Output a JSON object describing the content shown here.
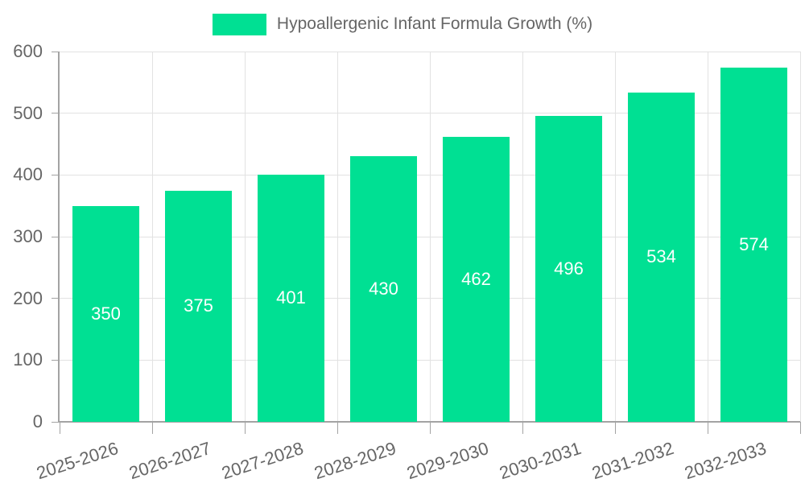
{
  "chart_data": {
    "type": "bar",
    "title": "",
    "legend": "Hypoallergenic Infant Formula Growth (%)",
    "legend_position": "top",
    "categories": [
      "2025-2026",
      "2026-2027",
      "2027-2028",
      "2028-2029",
      "2029-2030",
      "2030-2031",
      "2031-2032",
      "2032-2033"
    ],
    "values": [
      350,
      375,
      401,
      430,
      462,
      496,
      534,
      574
    ],
    "xlabel": "",
    "ylabel": "",
    "ylim": [
      0,
      600
    ],
    "yticks": [
      0,
      100,
      200,
      300,
      400,
      500,
      600
    ],
    "grid": true,
    "colors": {
      "bar": "#00E093",
      "bar_value_label": "#ffffff",
      "axis_text": "#666666",
      "grid_line": "#e2e2e2",
      "axis_line": "#a3a3a3",
      "background": "#ffffff"
    }
  }
}
